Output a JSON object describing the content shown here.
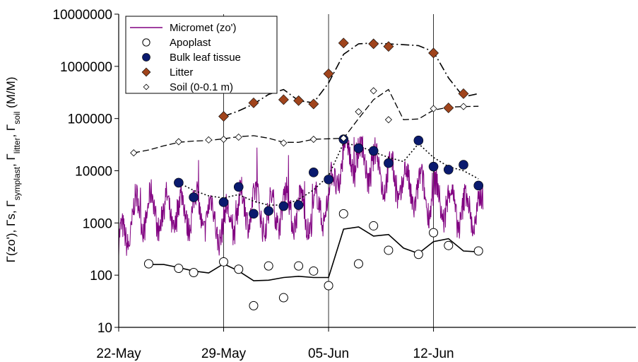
{
  "chart_data": {
    "type": "scatter",
    "title": "",
    "xlabel": "",
    "ylabel_parts": [
      {
        "t": "Γ(zo'), Γs, Γ",
        "sub": false
      },
      {
        "t": "symplast",
        "sub": true
      },
      {
        "t": ", Γ",
        "sub": false
      },
      {
        "t": "litter",
        "sub": true
      },
      {
        "t": ", Γ",
        "sub": false
      },
      {
        "t": "soil",
        "sub": true
      },
      {
        "t": " (M/M)",
        "sub": false
      }
    ],
    "x_unit": "days since 22-May",
    "xlim": [
      0,
      34.5
    ],
    "x_ticks": [
      0,
      7,
      14,
      21
    ],
    "x_tick_labels": [
      "22-May",
      "29-May",
      "05-Jun",
      "12-Jun"
    ],
    "y_scale": "log",
    "ylim": [
      10,
      10000000
    ],
    "y_ticks": [
      10,
      100,
      1000,
      10000,
      100000,
      1000000,
      10000000
    ],
    "y_tick_labels": [
      "10",
      "100",
      "1000",
      "10000",
      "100000",
      "1000000",
      "10000000"
    ],
    "vertical_gridlines_at": [
      7,
      14,
      21
    ],
    "legend_position": "top-left",
    "series": [
      {
        "name": "Micromet (zo')",
        "kind": "line",
        "color": "#800080",
        "style": "solid"
      },
      {
        "name": "Apoplast",
        "kind": "marker",
        "marker": "open-circle",
        "x": [
          2,
          4,
          5,
          7,
          8,
          9,
          10,
          11,
          12,
          13,
          14,
          15,
          16,
          17,
          18,
          20,
          21,
          22,
          24
        ],
        "y": [
          165,
          135,
          112,
          180,
          130,
          26,
          150,
          37,
          150,
          120,
          63,
          1500,
          165,
          880,
          300,
          250,
          650,
          370,
          290
        ]
      },
      {
        "name": "Bulk leaf tissue",
        "kind": "marker",
        "marker": "filled-circle",
        "color": "#0a1a6e",
        "x": [
          4,
          5,
          7,
          8,
          9,
          10,
          11,
          12,
          13,
          14,
          15,
          16,
          17,
          18,
          20,
          21,
          22,
          23,
          24
        ],
        "y": [
          5900,
          3100,
          2500,
          4900,
          1500,
          1700,
          2100,
          2200,
          9300,
          6800,
          40000,
          27000,
          24000,
          14000,
          38000,
          12000,
          10500,
          13000,
          5200
        ]
      },
      {
        "name": "Litter",
        "kind": "marker",
        "marker": "filled-diamond",
        "color": "#a0441c",
        "x": [
          7,
          9,
          10,
          11,
          12,
          13,
          14,
          15,
          17,
          18,
          21,
          22,
          23
        ],
        "y": [
          110000,
          200000,
          470000,
          230000,
          220000,
          190000,
          720000,
          2800000,
          2700000,
          2400000,
          1800000,
          160000,
          300000
        ]
      },
      {
        "name": "Soil (0-0.1 m)",
        "kind": "marker",
        "marker": "open-diamond",
        "x": [
          1,
          4,
          6,
          7,
          8,
          11,
          13,
          15,
          16,
          17,
          18,
          21,
          23
        ],
        "y": [
          22000,
          36000,
          39000,
          40000,
          44000,
          34000,
          40000,
          42000,
          135000,
          340000,
          95000,
          155000,
          170000
        ]
      }
    ],
    "fit_lines": [
      {
        "follows": "Litter",
        "style": "dash-dot",
        "x": [
          7,
          8,
          9,
          10,
          11,
          12,
          13,
          14,
          15,
          16,
          17,
          18,
          19,
          20,
          21,
          22,
          23,
          24
        ],
        "y": [
          110000,
          140000,
          190000,
          290000,
          360000,
          220000,
          200000,
          480000,
          1700000,
          2700000,
          2800000,
          2700000,
          2600000,
          2500000,
          1900000,
          600000,
          260000,
          300000
        ]
      },
      {
        "follows": "Soil (0-0.1 m)",
        "style": "dashed",
        "x": [
          1,
          2,
          3,
          4,
          5,
          6,
          7,
          8,
          9,
          10,
          11,
          12,
          13,
          14,
          15,
          16,
          17,
          18,
          19,
          20,
          21,
          22,
          23,
          24
        ],
        "y": [
          22000,
          25000,
          30000,
          35000,
          37000,
          38000,
          41000,
          45000,
          47000,
          42000,
          35000,
          35000,
          40000,
          41000,
          42000,
          100000,
          230000,
          360000,
          95000,
          98000,
          145000,
          165000,
          170000,
          172000
        ]
      },
      {
        "follows": "Bulk leaf tissue",
        "style": "dotted",
        "x": [
          4,
          5,
          6,
          7,
          8,
          9,
          10,
          11,
          12,
          13,
          14,
          15,
          16,
          17,
          18,
          19,
          20,
          21,
          22,
          23,
          24
        ],
        "y": [
          5900,
          4200,
          3300,
          3000,
          3500,
          2600,
          2200,
          2200,
          2800,
          4300,
          8000,
          34000,
          30000,
          23000,
          18000,
          15000,
          33000,
          18000,
          12000,
          10000,
          7000
        ]
      },
      {
        "follows": "Apoplast",
        "style": "solid",
        "x": [
          2,
          3,
          4,
          5,
          6,
          7,
          8,
          9,
          10,
          11,
          12,
          13,
          14,
          15,
          16,
          17,
          18,
          19,
          20,
          21,
          22,
          23,
          24
        ],
        "y": [
          160,
          160,
          140,
          120,
          110,
          165,
          120,
          78,
          80,
          90,
          95,
          90,
          90,
          760,
          840,
          560,
          600,
          330,
          260,
          440,
          500,
          290,
          280
        ]
      }
    ]
  }
}
